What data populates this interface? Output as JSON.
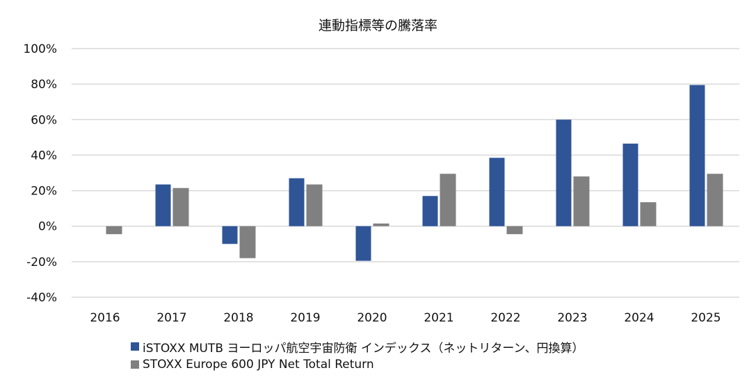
{
  "chart_data": {
    "type": "bar",
    "title": "連動指標等の騰落率",
    "xlabel": "",
    "ylabel": "",
    "categories": [
      "2016",
      "2017",
      "2018",
      "2019",
      "2020",
      "2021",
      "2022",
      "2023",
      "2024",
      "2025"
    ],
    "series": [
      {
        "name": "iSTOXX MUTB ヨーロッパ航空宇宙防衛 インデックス（ネットリターン、円換算）",
        "color": "#2F5597",
        "values": [
          null,
          23.5,
          -10.0,
          27.0,
          -19.5,
          17.0,
          38.5,
          60.0,
          46.5,
          79.5
        ]
      },
      {
        "name": "STOXX Europe 600 JPY Net Total Return",
        "color": "#808080",
        "values": [
          -4.5,
          21.5,
          -18.0,
          23.5,
          1.5,
          29.5,
          -4.5,
          28.0,
          13.5,
          29.5
        ]
      }
    ],
    "ylim": [
      -40,
      100
    ],
    "yticks": [
      100,
      80,
      60,
      40,
      20,
      0,
      -20,
      -40
    ],
    "ytick_labels": [
      "100%",
      "80%",
      "60%",
      "40%",
      "20%",
      "0%",
      "-20%",
      "-40%"
    ],
    "grid": true,
    "gridline_color": "#D9D9D9",
    "legend_position": "bottom-left"
  }
}
